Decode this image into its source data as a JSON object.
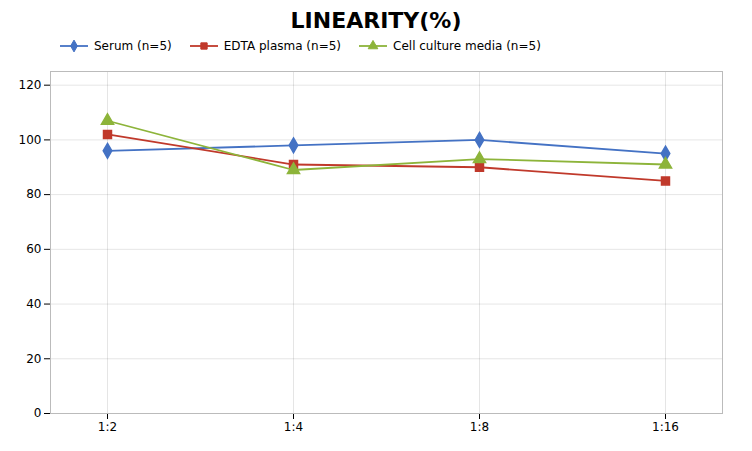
{
  "chart_data": {
    "type": "line",
    "title": "LINEARITY(%)",
    "categories": [
      "1:2",
      "1:4",
      "1:8",
      "1:16"
    ],
    "series": [
      {
        "name": "Serum (n=5)",
        "color": "#4472C4",
        "marker": "diamond",
        "values": [
          96,
          98,
          100,
          95
        ]
      },
      {
        "name": "EDTA plasma (n=5)",
        "color": "#C0392B",
        "marker": "square",
        "values": [
          102,
          91,
          90,
          85
        ]
      },
      {
        "name": "Cell culture media (n=5)",
        "color": "#8DB43A",
        "marker": "triangle",
        "values": [
          107,
          89,
          93,
          91
        ]
      }
    ],
    "ylim": [
      0,
      125
    ],
    "yticks": [
      0,
      20,
      40,
      60,
      80,
      100,
      120
    ],
    "grid": true,
    "legend": "top"
  }
}
